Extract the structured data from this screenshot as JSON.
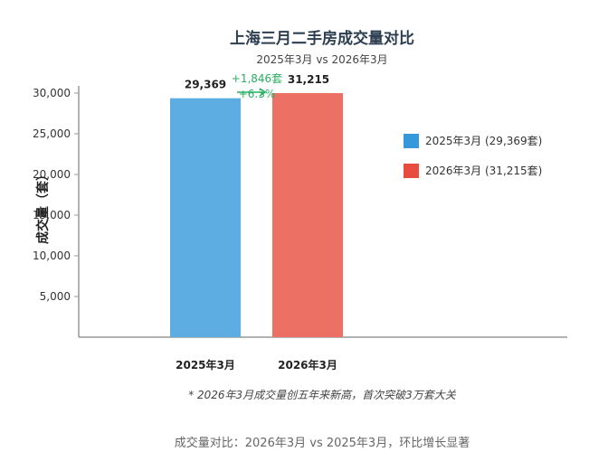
{
  "chart_data": {
    "type": "bar",
    "title": "上海三月二手房成交量对比",
    "subtitle": "2025年3月 vs 2026年3月",
    "ylabel": "成交量（套）",
    "xlabel": "",
    "categories": [
      "2025年3月",
      "2026年3月"
    ],
    "values": [
      29369,
      31215
    ],
    "value_labels": [
      "29,369",
      "31,215"
    ],
    "colors": [
      "#5dade2",
      "#ec7063"
    ],
    "ylim": [
      0,
      30000
    ],
    "yticks": [
      {
        "value": 5000,
        "label": "5,000"
      },
      {
        "value": 10000,
        "label": "10,000"
      },
      {
        "value": 15000,
        "label": "15,000"
      },
      {
        "value": 20000,
        "label": "20,000"
      },
      {
        "value": 25000,
        "label": "25,000"
      },
      {
        "value": 30000,
        "label": "30,000"
      }
    ],
    "grid": false,
    "legend_position": "right",
    "legend": [
      {
        "label": "2025年3月 (29,369套)",
        "color": "#3498db"
      },
      {
        "label": "2026年3月 (31,215套)",
        "color": "#e74c3c"
      }
    ],
    "annotation": {
      "increase": "+1,846套",
      "percent": "+6.3%",
      "color": "#27ae60"
    },
    "note": "* 2026年3月成交量创五年来新高，首次突破3万套大关",
    "footer": "成交量对比：2026年3月 vs 2025年3月，环比增长显著"
  }
}
